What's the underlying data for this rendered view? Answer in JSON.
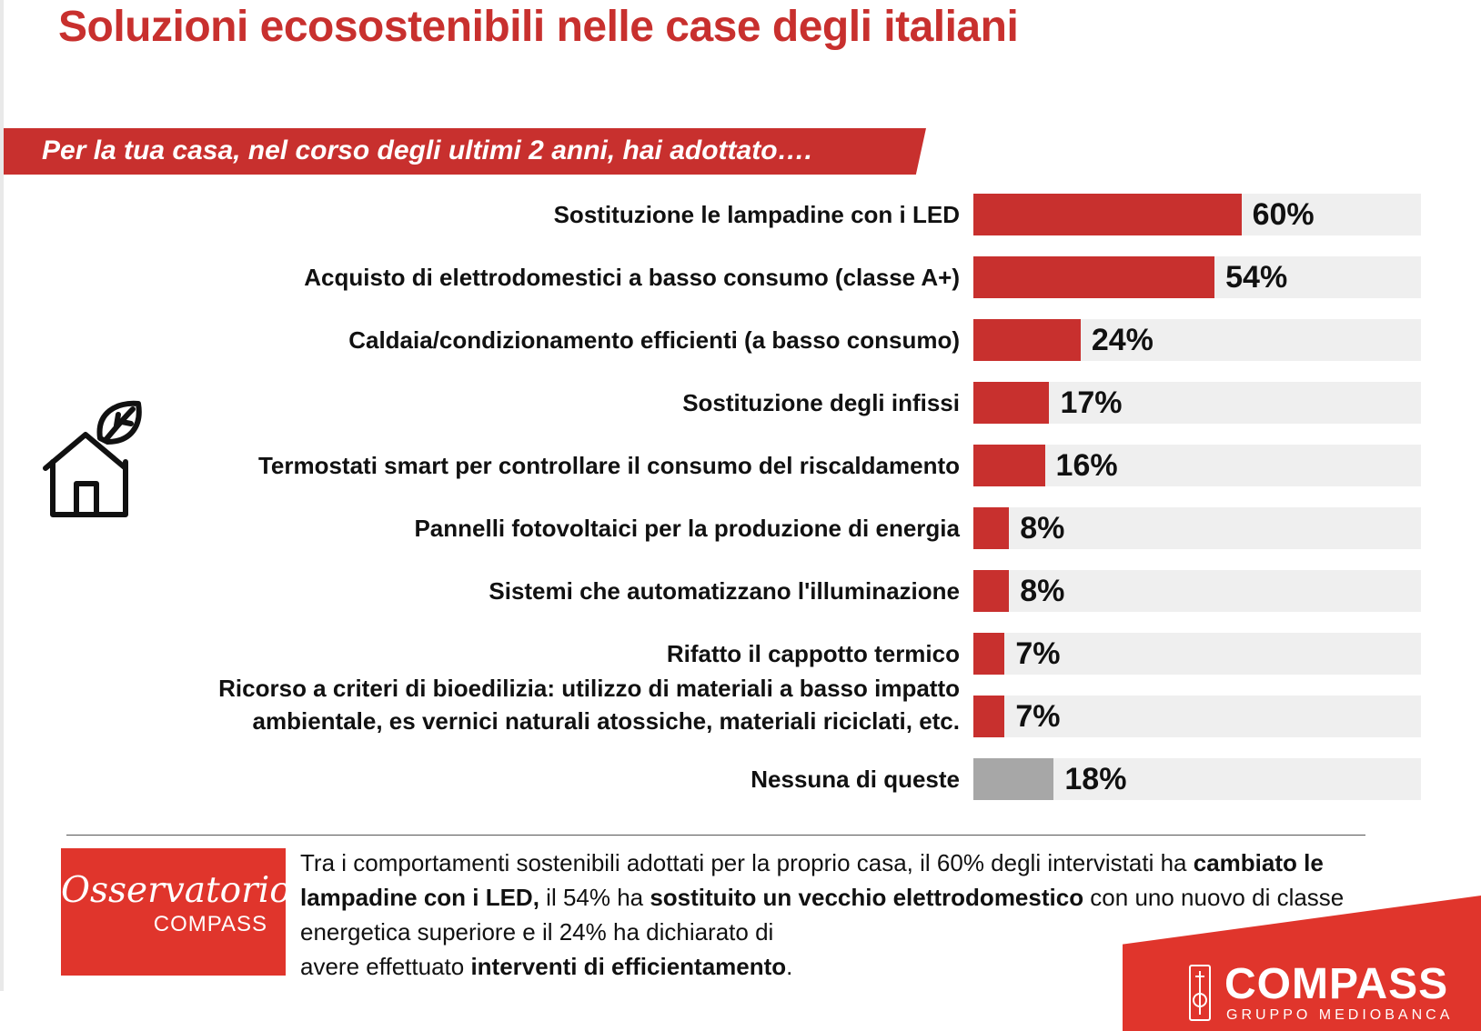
{
  "header": {
    "title": "Soluzioni ecosostenibili nelle case degli italiani"
  },
  "question": {
    "text": "Per la tua casa, nel corso degli ultimi 2 anni, hai adottato…."
  },
  "colors": {
    "accent": "#c8302e",
    "bar_red": "#c8302e",
    "bar_gray": "#a7a7a7",
    "track": "#efefef",
    "logo_red": "#e0352c"
  },
  "icons": {
    "house": "house-leaf-icon"
  },
  "chart_data": {
    "type": "bar",
    "orientation": "horizontal",
    "title": "Per la tua casa, nel corso degli ultimi 2 anni, hai adottato….",
    "xlim": [
      0,
      100
    ],
    "categories": [
      [
        "Sostituzione le lampadine con i LED"
      ],
      [
        "Acquisto di elettrodomestici a basso consumo (classe A+)"
      ],
      [
        "Caldaia/condizionamento efficienti (a basso consumo)"
      ],
      [
        "Sostituzione degli infissi"
      ],
      [
        "Termostati smart per controllare il consumo del riscaldamento"
      ],
      [
        "Pannelli fotovoltaici per la produzione di energia"
      ],
      [
        "Sistemi che automatizzano l'illuminazione"
      ],
      [
        "Rifatto il cappotto termico"
      ],
      [
        "Ricorso a criteri di bioedilizia: utilizzo di  materiali a basso impatto",
        "ambientale, es vernici naturali atossiche,  materiali riciclati, etc."
      ],
      [
        "Nessuna di queste"
      ]
    ],
    "values": [
      60,
      54,
      24,
      17,
      16,
      8,
      8,
      7,
      7,
      18
    ],
    "value_labels": [
      "60%",
      "54%",
      "24%",
      "17%",
      "16%",
      "8%",
      "8%",
      "7%",
      "7%",
      "18%"
    ],
    "bar_colors": [
      "#c8302e",
      "#c8302e",
      "#c8302e",
      "#c8302e",
      "#c8302e",
      "#c8302e",
      "#c8302e",
      "#c8302e",
      "#c8302e",
      "#a7a7a7"
    ]
  },
  "summary": {
    "p1": "Tra i comportamenti sostenibili adottati per la proprio casa, il 60% degli intervistati ha ",
    "b1": "cambiato le lampadine con i LED,",
    "p2": " il 54% ha ",
    "b2": "sostituito un vecchio elettrodomestico",
    "p3": " con uno nuovo di classe energetica superiore e il 24% ha dichiarato di",
    "p4": "avere effettuato ",
    "b3": "interventi di efficientamento",
    "p5": "."
  },
  "observatory": {
    "line1": "Osservatorio",
    "line2": "COMPASS"
  },
  "brand": {
    "name": "COMPASS",
    "sub": "GRUPPO MEDIOBANCA"
  }
}
